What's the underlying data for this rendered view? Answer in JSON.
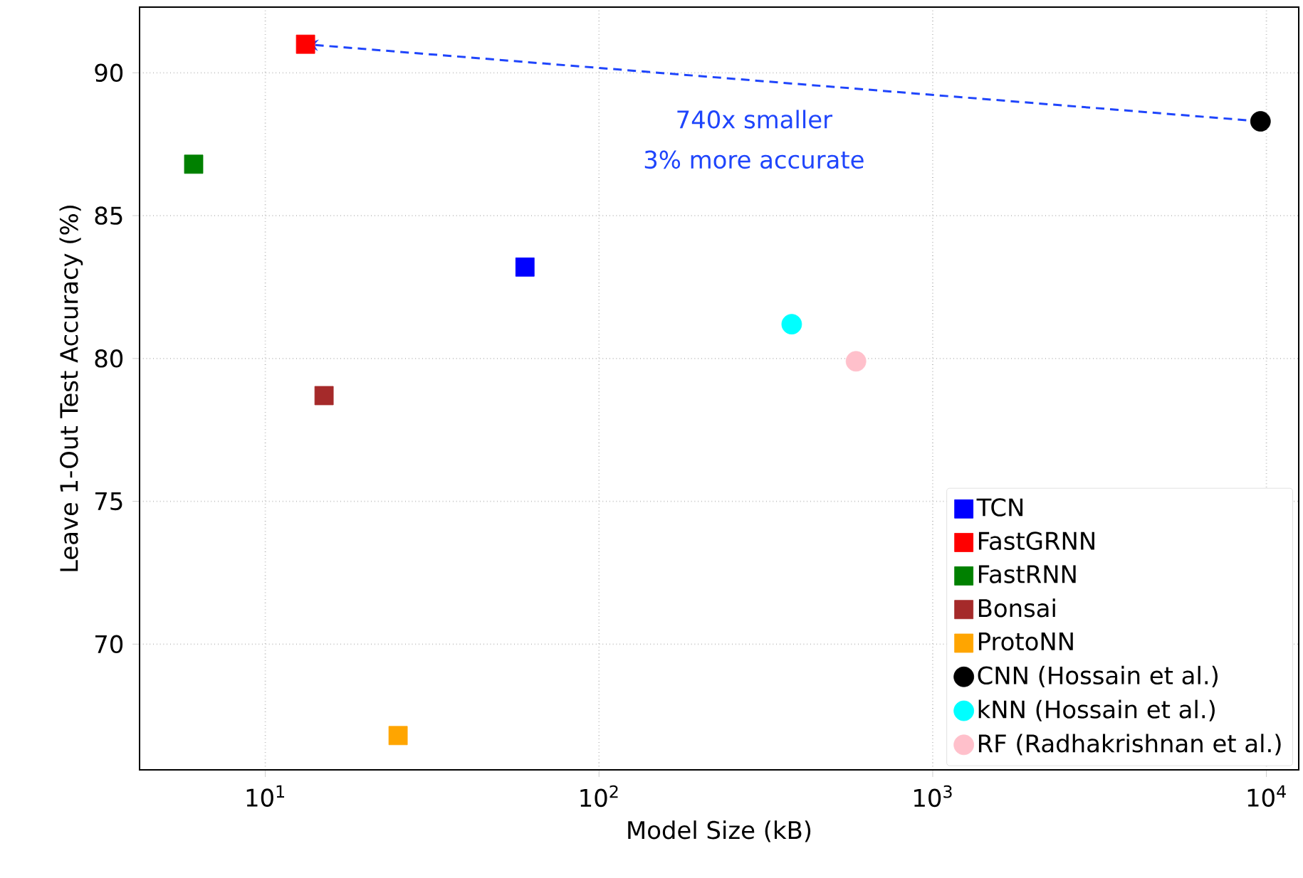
{
  "chart_data": {
    "type": "scatter",
    "xlabel": "Model Size (kB)",
    "ylabel": "Leave 1-Out Test Accuracy (%)",
    "log": "x",
    "grid": true,
    "legend": "bottom right",
    "xlim": [
      4.2,
      12500
    ],
    "ylim": [
      65.6,
      92.3
    ],
    "xticks": [
      {
        "value": 10,
        "label": "10$^{1}$"
      },
      {
        "value": 100,
        "label": "10$^{2}$"
      },
      {
        "value": 1000,
        "label": "10$^{3}$"
      },
      {
        "value": 10000,
        "label": "10$^{4}$"
      }
    ],
    "yticks": [
      70,
      75,
      80,
      85,
      90
    ],
    "series": [
      {
        "name": "TCN",
        "color": "#0000ff",
        "marker": "square",
        "x": [
          60
        ],
        "values": [
          83.2
        ]
      },
      {
        "name": "FastGRNN",
        "color": "#ff0000",
        "marker": "square",
        "x": [
          13.2
        ],
        "values": [
          91.0
        ]
      },
      {
        "name": "FastRNN",
        "color": "#008000",
        "marker": "square",
        "x": [
          6.1
        ],
        "values": [
          86.8
        ]
      },
      {
        "name": "Bonsai",
        "color": "#a52a2a",
        "marker": "square",
        "x": [
          15
        ],
        "values": [
          78.7
        ]
      },
      {
        "name": "ProtoNN",
        "color": "#ffa500",
        "marker": "square",
        "x": [
          25
        ],
        "values": [
          66.8
        ]
      },
      {
        "name": "CNN (Hossain et al.)",
        "color": "#000000",
        "marker": "circle",
        "x": [
          9600
        ],
        "values": [
          88.3
        ]
      },
      {
        "name": "kNN (Hossain et al.)",
        "color": "#00ffff",
        "marker": "circle",
        "x": [
          378
        ],
        "values": [
          81.2
        ]
      },
      {
        "name": "RF (Radhakrishnan et al.)",
        "color": "#ffc0cb",
        "marker": "circle",
        "x": [
          589
        ],
        "values": [
          79.9
        ]
      }
    ],
    "annotations": [
      "740x smaller",
      "3% more accurate"
    ]
  }
}
